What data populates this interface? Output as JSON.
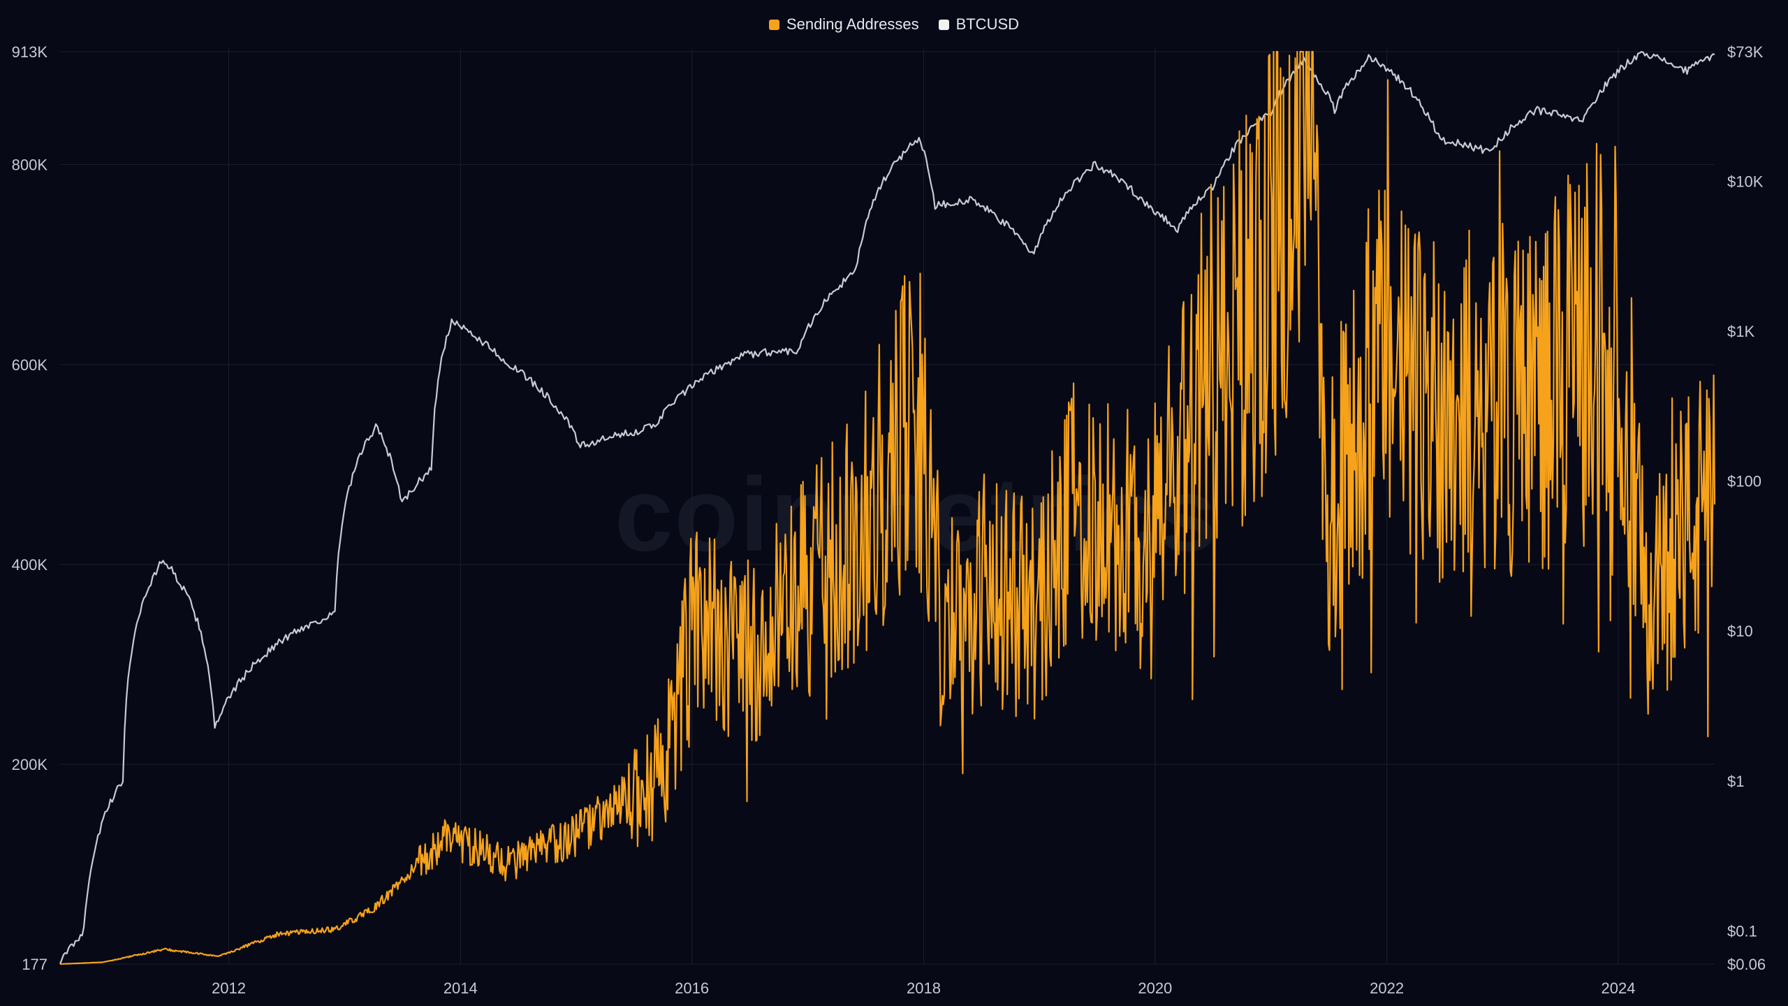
{
  "watermark": "coinmetrics",
  "legend": [
    {
      "label": "Sending Addresses",
      "color": "#f7a21b"
    },
    {
      "label": "BTCUSD",
      "color": "#f2f2f2"
    }
  ],
  "chart_data": {
    "type": "line",
    "title": "",
    "x_ticks": [
      "2012",
      "2014",
      "2016",
      "2018",
      "2020",
      "2022",
      "2024"
    ],
    "y_left_ticks": [
      {
        "label": "913K",
        "value": 913000
      },
      {
        "label": "800K",
        "value": 800000
      },
      {
        "label": "600K",
        "value": 600000
      },
      {
        "label": "400K",
        "value": 400000
      },
      {
        "label": "200K",
        "value": 200000
      },
      {
        "label": "177",
        "value": 177
      }
    ],
    "y_right_ticks": [
      {
        "label": "$73K",
        "value": 73000
      },
      {
        "label": "$10K",
        "value": 10000
      },
      {
        "label": "$1K",
        "value": 1000
      },
      {
        "label": "$100",
        "value": 100
      },
      {
        "label": "$10",
        "value": 10
      },
      {
        "label": "$1",
        "value": 1
      },
      {
        "label": "$0.1",
        "value": 0.1
      },
      {
        "label": "$0.06",
        "value": 0.06
      }
    ],
    "x_range": [
      "2010-07-18",
      "2024-10-31"
    ],
    "y_left_range": [
      177,
      913000
    ],
    "y_right_range": [
      0.06,
      73000
    ],
    "y_right_scale": "log",
    "grid": true,
    "legend_position": "top-center",
    "series": [
      {
        "name": "Sending Addresses",
        "axis": "left",
        "color": "#f7a21b",
        "points": [
          [
            "2010-07-18",
            200
          ],
          [
            "2010-12-01",
            2000
          ],
          [
            "2011-06-10",
            15000
          ],
          [
            "2011-12-01",
            8000
          ],
          [
            "2012-06-01",
            30000
          ],
          [
            "2012-12-01",
            35000
          ],
          [
            "2013-04-01",
            55000
          ],
          [
            "2013-11-25",
            130000
          ],
          [
            "2014-06-01",
            100000
          ],
          [
            "2014-12-01",
            125000
          ],
          [
            "2015-06-01",
            160000
          ],
          [
            "2015-10-01",
            190000
          ],
          [
            "2016-01-01",
            330000
          ],
          [
            "2016-06-01",
            315000
          ],
          [
            "2016-12-01",
            360000
          ],
          [
            "2017-06-01",
            430000
          ],
          [
            "2017-12-15",
            560000
          ],
          [
            "2018-03-01",
            330000
          ],
          [
            "2018-08-01",
            380000
          ],
          [
            "2018-12-01",
            350000
          ],
          [
            "2019-06-01",
            470000
          ],
          [
            "2019-12-01",
            400000
          ],
          [
            "2020-06-01",
            580000
          ],
          [
            "2020-12-15",
            680000
          ],
          [
            "2021-04-15",
            900000
          ],
          [
            "2021-07-01",
            450000
          ],
          [
            "2021-12-01",
            600000
          ],
          [
            "2022-06-01",
            560000
          ],
          [
            "2022-12-01",
            560000
          ],
          [
            "2023-06-01",
            580000
          ],
          [
            "2023-12-01",
            640000
          ],
          [
            "2024-01-15",
            610000
          ],
          [
            "2024-04-01",
            330000
          ],
          [
            "2024-07-01",
            430000
          ],
          [
            "2024-10-31",
            460000
          ]
        ]
      },
      {
        "name": "BTCUSD",
        "axis": "right",
        "color": "#c8cbd2",
        "points": [
          [
            "2010-07-18",
            0.06
          ],
          [
            "2010-10-01",
            0.1
          ],
          [
            "2011-02-01",
            1
          ],
          [
            "2011-06-08",
            30
          ],
          [
            "2011-11-18",
            2.2
          ],
          [
            "2012-08-01",
            10
          ],
          [
            "2012-12-01",
            13
          ],
          [
            "2013-04-09",
            230
          ],
          [
            "2013-07-01",
            70
          ],
          [
            "2013-10-01",
            120
          ],
          [
            "2013-12-04",
            1150
          ],
          [
            "2014-06-01",
            600
          ],
          [
            "2015-01-14",
            170
          ],
          [
            "2015-09-01",
            230
          ],
          [
            "2016-06-15",
            700
          ],
          [
            "2016-12-01",
            750
          ],
          [
            "2017-06-01",
            2500
          ],
          [
            "2017-12-17",
            19500
          ],
          [
            "2018-02-06",
            6900
          ],
          [
            "2018-06-01",
            7500
          ],
          [
            "2018-12-15",
            3200
          ],
          [
            "2019-06-26",
            13000
          ],
          [
            "2019-12-17",
            6600
          ],
          [
            "2020-03-12",
            4800
          ],
          [
            "2020-07-01",
            9200
          ],
          [
            "2020-12-31",
            29000
          ],
          [
            "2021-04-14",
            64000
          ],
          [
            "2021-07-20",
            29800
          ],
          [
            "2021-11-10",
            68000
          ],
          [
            "2022-06-18",
            19000
          ],
          [
            "2022-11-21",
            15800
          ],
          [
            "2023-04-15",
            30000
          ],
          [
            "2023-09-11",
            25000
          ],
          [
            "2024-03-14",
            73000
          ],
          [
            "2024-08-05",
            54000
          ],
          [
            "2024-10-31",
            70000
          ]
        ]
      }
    ]
  }
}
